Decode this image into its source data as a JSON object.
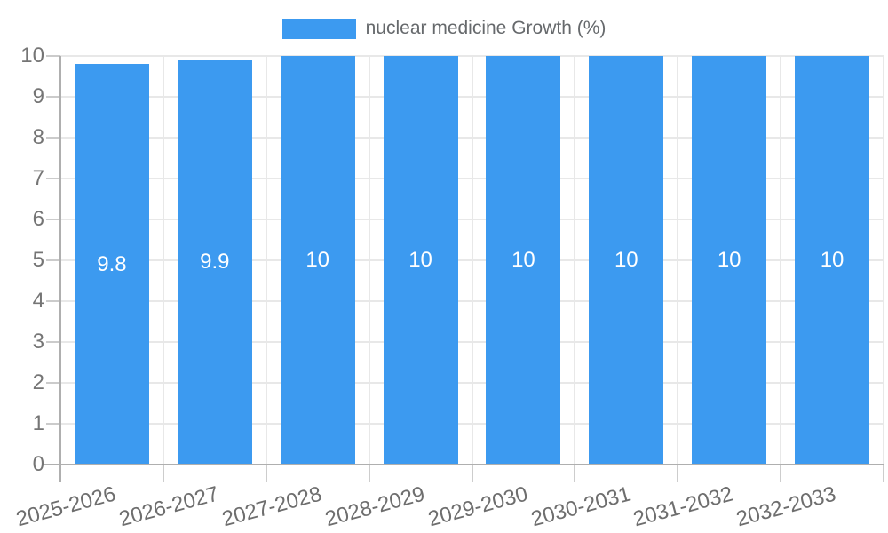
{
  "legend": {
    "label": "nuclear medicine Growth (%)"
  },
  "colors": {
    "bar": "#3c9af0",
    "grid": "#e8e8e8",
    "axis": "#afafaf",
    "y_tick": "#cbcbcb",
    "x_tick": "#cdcdcd",
    "axis_label_text": "#757575",
    "value_label_text": "#ffffff"
  },
  "chart_data": {
    "type": "bar",
    "title": "",
    "xlabel": "",
    "ylabel": "",
    "categories": [
      "2025-2026",
      "2026-2027",
      "2027-2028",
      "2028-2029",
      "2029-2030",
      "2030-2031",
      "2031-2032",
      "2032-2033"
    ],
    "series": [
      {
        "name": "nuclear medicine Growth (%)",
        "values": [
          9.8,
          9.9,
          10,
          10,
          10,
          10,
          10,
          10
        ],
        "value_labels": [
          "9.8",
          "9.9",
          "10",
          "10",
          "10",
          "10",
          "10",
          "10"
        ]
      }
    ],
    "ylim": [
      0,
      10
    ],
    "yticks": [
      "0",
      "1",
      "2",
      "3",
      "4",
      "5",
      "6",
      "7",
      "8",
      "9",
      "10"
    ],
    "grid": true,
    "legend_position": "top",
    "bar_label_position": "center"
  }
}
